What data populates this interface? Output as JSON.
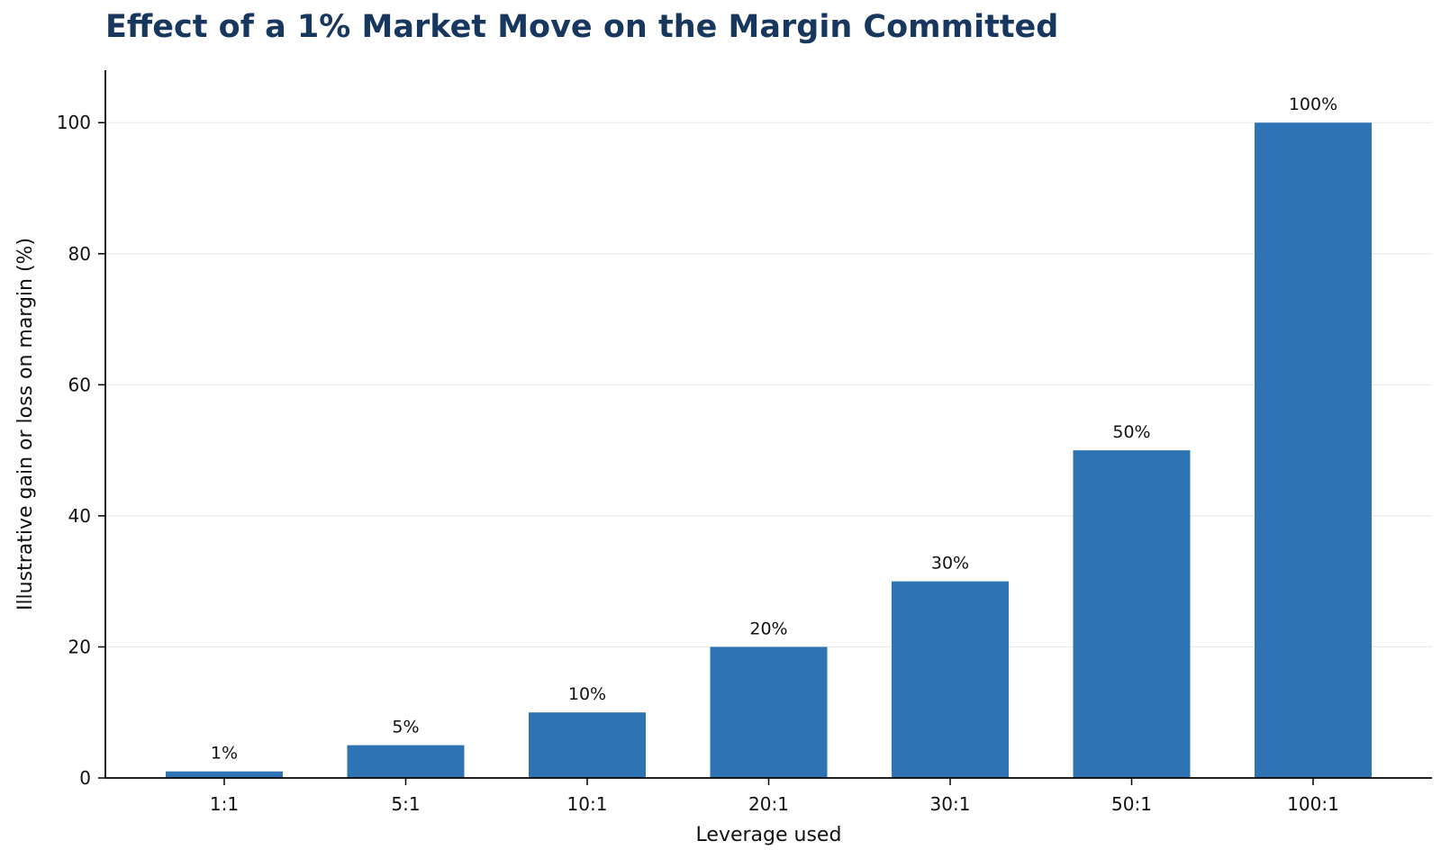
{
  "chart_data": {
    "type": "bar",
    "title": "Effect of a 1% Market Move on the Margin Committed",
    "xlabel": "Leverage used",
    "ylabel": "Illustrative gain or loss on margin (%)",
    "categories": [
      "1:1",
      "5:1",
      "10:1",
      "20:1",
      "30:1",
      "50:1",
      "100:1"
    ],
    "values": [
      1,
      5,
      10,
      20,
      30,
      50,
      100
    ],
    "value_labels": [
      "1%",
      "5%",
      "10%",
      "20%",
      "30%",
      "50%",
      "100%"
    ],
    "ylim": [
      0,
      108
    ],
    "yticks": [
      0,
      20,
      40,
      60,
      80,
      100
    ],
    "grid": "horizontal",
    "legend": "none"
  },
  "colors": {
    "bar": "#2e74b5",
    "title": "#17375e",
    "axis": "#000000",
    "grid": "#ebebeb",
    "text": "#111111"
  }
}
